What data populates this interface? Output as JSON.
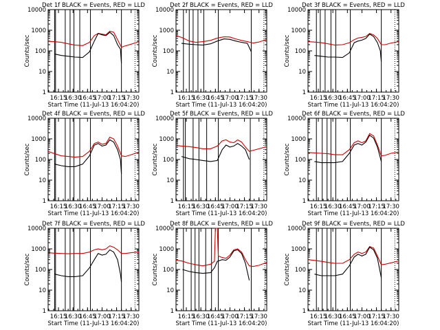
{
  "figure": {
    "y_axis_label": "Counts/sec",
    "x_axis_label": "Start Time (11-Jul-13 16:04:20)",
    "x_tick_labels": [
      "16:15",
      "16:30",
      "16:45",
      "17:00",
      "17:15",
      "17:30"
    ],
    "y_tick_labels": [
      "1",
      "10",
      "100",
      "1000",
      "10000"
    ]
  },
  "chart_data": [
    {
      "type": "line",
      "title": "Det 1f BLACK = Events, RED = LLD",
      "xlabel": "Start Time (11-Jul-13 16:04:20)",
      "ylabel": "Counts/sec",
      "y_scale": "log",
      "ylim": [
        1,
        10000
      ],
      "x_time_range": [
        "16:04:20",
        "17:38:00"
      ],
      "x_ticks": [
        "16:15",
        "16:30",
        "16:45",
        "17:00",
        "17:15",
        "17:30"
      ],
      "vertical_markers": [
        "16:11",
        "16:12",
        "16:22",
        "16:27",
        "16:31",
        "16:37",
        "16:48",
        "17:20"
      ],
      "dotted_marker": "17:34",
      "series": [
        {
          "name": "Events",
          "color": "#000000",
          "x": [
            "16:11",
            "16:18",
            "16:25",
            "16:32",
            "16:40",
            "16:47",
            "16:52",
            "16:56",
            "17:00",
            "17:04",
            "17:08",
            "17:12",
            "17:16",
            "17:19",
            "17:20"
          ],
          "y": [
            70,
            60,
            55,
            50,
            48,
            90,
            300,
            700,
            600,
            550,
            800,
            550,
            200,
            120,
            25
          ]
        },
        {
          "name": "LLD",
          "color": "#cc0000",
          "x": [
            "16:04",
            "16:10",
            "16:18",
            "16:25",
            "16:32",
            "16:40",
            "16:47",
            "16:52",
            "16:56",
            "17:00",
            "17:04",
            "17:08",
            "17:12",
            "17:16",
            "17:20",
            "17:23",
            "17:30",
            "17:38"
          ],
          "y": [
            290,
            280,
            260,
            220,
            190,
            180,
            260,
            550,
            700,
            650,
            600,
            900,
            800,
            350,
            150,
            170,
            210,
            280
          ]
        }
      ]
    },
    {
      "type": "line",
      "title": "Det 2f BLACK = Events, RED = LLD",
      "xlabel": "Start Time (11-Jul-13 16:04:20)",
      "ylabel": "Counts/sec",
      "y_scale": "log",
      "ylim": [
        1,
        10000
      ],
      "x_time_range": [
        "16:04:20",
        "17:38:00"
      ],
      "x_ticks": [
        "16:15",
        "16:30",
        "16:45",
        "17:00",
        "17:15",
        "17:30"
      ],
      "vertical_markers": [
        "16:12",
        "16:18",
        "16:22",
        "16:27",
        "16:33",
        "16:48",
        "17:22"
      ],
      "dotted_marker": "17:35",
      "series": [
        {
          "name": "Events",
          "color": "#000000",
          "x": [
            "16:10",
            "16:18",
            "16:25",
            "16:32",
            "16:40",
            "16:47",
            "16:54",
            "17:00",
            "17:06",
            "17:12",
            "17:18",
            "17:22"
          ],
          "y": [
            230,
            210,
            200,
            190,
            220,
            300,
            380,
            360,
            300,
            260,
            230,
            90
          ]
        },
        {
          "name": "LLD",
          "color": "#cc0000",
          "x": [
            "16:04",
            "16:10",
            "16:18",
            "16:25",
            "16:32",
            "16:40",
            "16:47",
            "16:54",
            "17:00",
            "17:06",
            "17:12",
            "17:18",
            "17:24",
            "17:30",
            "17:38"
          ],
          "y": [
            550,
            450,
            300,
            260,
            280,
            320,
            420,
            480,
            470,
            380,
            320,
            280,
            240,
            270,
            360
          ]
        }
      ]
    },
    {
      "type": "line",
      "title": "Det 3f BLACK = Events, RED = LLD",
      "xlabel": "Start Time (11-Jul-13 16:04:20)",
      "ylabel": "Counts/sec",
      "y_scale": "log",
      "ylim": [
        1,
        10000
      ],
      "x_time_range": [
        "16:04:20",
        "17:38:00"
      ],
      "x_ticks": [
        "16:15",
        "16:30",
        "16:45",
        "17:00",
        "17:15",
        "17:30"
      ],
      "vertical_markers": [
        "16:13",
        "16:17",
        "16:22",
        "16:28",
        "16:33",
        "16:48",
        "17:20"
      ],
      "dotted_marker": "17:34",
      "series": [
        {
          "name": "Events",
          "color": "#000000",
          "x": [
            "16:11",
            "16:18",
            "16:25",
            "16:32",
            "16:40",
            "16:47",
            "16:52",
            "16:56",
            "17:00",
            "17:04",
            "17:08",
            "17:12",
            "17:16",
            "17:19",
            "17:20"
          ],
          "y": [
            60,
            55,
            50,
            50,
            48,
            80,
            250,
            300,
            330,
            400,
            650,
            500,
            250,
            100,
            30
          ]
        },
        {
          "name": "LLD",
          "color": "#cc0000",
          "x": [
            "16:04",
            "16:10",
            "16:18",
            "16:25",
            "16:32",
            "16:40",
            "16:47",
            "16:52",
            "16:56",
            "17:00",
            "17:04",
            "17:08",
            "17:12",
            "17:16",
            "17:20",
            "17:24",
            "17:30",
            "17:38"
          ],
          "y": [
            280,
            270,
            250,
            220,
            190,
            200,
            250,
            350,
            420,
            450,
            500,
            700,
            600,
            400,
            200,
            200,
            240,
            280
          ]
        }
      ]
    },
    {
      "type": "line",
      "title": "Det 4f BLACK = Events, RED = LLD",
      "xlabel": "Start Time (11-Jul-13 16:04:20)",
      "ylabel": "Counts/sec",
      "y_scale": "log",
      "ylim": [
        1,
        10000
      ],
      "x_time_range": [
        "16:04:20",
        "17:38:00"
      ],
      "x_ticks": [
        "16:15",
        "16:30",
        "16:45",
        "17:00",
        "17:15",
        "17:30"
      ],
      "vertical_markers": [
        "16:11",
        "16:12",
        "16:22",
        "16:27",
        "16:31",
        "16:37",
        "16:48",
        "17:20"
      ],
      "dotted_marker": "17:34",
      "series": [
        {
          "name": "Events",
          "color": "#000000",
          "x": [
            "16:11",
            "16:18",
            "16:25",
            "16:32",
            "16:40",
            "16:47",
            "16:52",
            "16:56",
            "17:00",
            "17:04",
            "17:08",
            "17:12",
            "17:16",
            "17:19",
            "17:20"
          ],
          "y": [
            60,
            50,
            45,
            45,
            60,
            150,
            500,
            600,
            450,
            500,
            900,
            700,
            300,
            100,
            20
          ]
        },
        {
          "name": "LLD",
          "color": "#cc0000",
          "x": [
            "16:04",
            "16:10",
            "16:18",
            "16:25",
            "16:32",
            "16:40",
            "16:47",
            "16:52",
            "16:56",
            "17:00",
            "17:04",
            "17:08",
            "17:12",
            "17:16",
            "17:20",
            "17:24",
            "17:30",
            "17:38"
          ],
          "y": [
            250,
            200,
            150,
            140,
            130,
            140,
            250,
            600,
            700,
            550,
            600,
            1200,
            1000,
            450,
            150,
            140,
            170,
            230
          ]
        }
      ]
    },
    {
      "type": "line",
      "title": "Det 5f BLACK = Events, RED = LLD",
      "xlabel": "Start Time (11-Jul-13 16:04:20)",
      "ylabel": "Counts/sec",
      "y_scale": "log",
      "ylim": [
        1,
        10000
      ],
      "x_time_range": [
        "16:04:20",
        "17:38:00"
      ],
      "x_ticks": [
        "16:15",
        "16:30",
        "16:45",
        "17:00",
        "17:15",
        "17:30"
      ],
      "vertical_markers": [
        "16:12",
        "16:14",
        "16:22",
        "16:28",
        "16:36",
        "16:48",
        "17:21"
      ],
      "dotted_marker": "17:35",
      "series": [
        {
          "name": "Events",
          "color": "#000000",
          "x": [
            "16:10",
            "16:18",
            "16:25",
            "16:32",
            "16:40",
            "16:47",
            "16:52",
            "16:56",
            "17:00",
            "17:04",
            "17:08",
            "17:12",
            "17:16",
            "17:20"
          ],
          "y": [
            140,
            110,
            100,
            90,
            80,
            90,
            300,
            500,
            400,
            450,
            600,
            450,
            300,
            100
          ]
        },
        {
          "name": "LLD",
          "color": "#cc0000",
          "x": [
            "16:04",
            "16:10",
            "16:18",
            "16:25",
            "16:32",
            "16:40",
            "16:47",
            "16:52",
            "16:56",
            "17:00",
            "17:04",
            "17:08",
            "17:12",
            "17:16",
            "17:20",
            "17:24",
            "17:30",
            "17:38"
          ],
          "y": [
            480,
            450,
            420,
            380,
            330,
            330,
            450,
            800,
            900,
            700,
            650,
            900,
            700,
            400,
            250,
            280,
            330,
            420
          ]
        }
      ]
    },
    {
      "type": "line",
      "title": "Det 6f BLACK = Events, RED = LLD",
      "xlabel": "Start Time (11-Jul-13 16:04:20)",
      "ylabel": "Counts/sec",
      "y_scale": "log",
      "ylim": [
        1,
        10000
      ],
      "x_time_range": [
        "16:04:20",
        "17:38:00"
      ],
      "x_ticks": [
        "16:15",
        "16:30",
        "16:45",
        "17:00",
        "17:15",
        "17:30"
      ],
      "vertical_markers": [
        "16:13",
        "16:19",
        "16:24",
        "16:28",
        "16:33",
        "16:48",
        "17:20"
      ],
      "dotted_marker": "17:34",
      "series": [
        {
          "name": "Events",
          "color": "#000000",
          "x": [
            "16:11",
            "16:18",
            "16:25",
            "16:32",
            "16:40",
            "16:47",
            "16:52",
            "16:56",
            "17:00",
            "17:04",
            "17:08",
            "17:12",
            "17:16",
            "17:20"
          ],
          "y": [
            80,
            70,
            70,
            70,
            80,
            200,
            500,
            600,
            500,
            700,
            1500,
            1100,
            400,
            80
          ]
        },
        {
          "name": "LLD",
          "color": "#cc0000",
          "x": [
            "16:04",
            "16:10",
            "16:18",
            "16:25",
            "16:32",
            "16:40",
            "16:47",
            "16:52",
            "16:56",
            "17:00",
            "17:04",
            "17:08",
            "17:12",
            "17:16",
            "17:20",
            "17:24",
            "17:30",
            "17:38"
          ],
          "y": [
            220,
            210,
            200,
            190,
            170,
            170,
            300,
            650,
            800,
            650,
            800,
            1800,
            1400,
            500,
            150,
            160,
            200,
            230
          ]
        }
      ]
    },
    {
      "type": "line",
      "title": "Det 7f BLACK = Events, RED = LLD",
      "xlabel": "Start Time (11-Jul-13 16:04:20)",
      "ylabel": "Counts/sec",
      "y_scale": "log",
      "ylim": [
        1,
        10000
      ],
      "x_time_range": [
        "16:04:20",
        "17:38:00"
      ],
      "x_ticks": [
        "16:15",
        "16:30",
        "16:45",
        "17:00",
        "17:15",
        "17:30"
      ],
      "vertical_markers": [
        "16:11",
        "16:12",
        "16:22",
        "16:27",
        "16:31",
        "16:37",
        "16:48",
        "17:20"
      ],
      "dotted_marker": "17:34",
      "series": [
        {
          "name": "Events",
          "color": "#000000",
          "x": [
            "16:11",
            "16:18",
            "16:25",
            "16:32",
            "16:40",
            "16:47",
            "16:52",
            "16:56",
            "17:00",
            "17:04",
            "17:08",
            "17:12",
            "17:16",
            "17:19",
            "17:20"
          ],
          "y": [
            60,
            50,
            45,
            45,
            50,
            120,
            300,
            600,
            500,
            550,
            900,
            700,
            300,
            60,
            25
          ]
        },
        {
          "name": "LLD",
          "color": "#cc0000",
          "x": [
            "16:04",
            "16:10",
            "16:18",
            "16:25",
            "16:32",
            "16:40",
            "16:47",
            "16:52",
            "16:56",
            "17:00",
            "17:04",
            "17:08",
            "17:12",
            "17:16",
            "17:20",
            "17:24",
            "17:30",
            "17:38"
          ],
          "y": [
            650,
            620,
            600,
            580,
            600,
            600,
            700,
            900,
            1000,
            900,
            1000,
            1400,
            1200,
            900,
            600,
            600,
            650,
            700
          ]
        }
      ]
    },
    {
      "type": "line",
      "title": "Det 8f BLACK = Events, RED = LLD",
      "xlabel": "Start Time (11-Jul-13 16:04:20)",
      "ylabel": "Counts/sec",
      "y_scale": "log",
      "ylim": [
        1,
        10000
      ],
      "x_time_range": [
        "16:04:20",
        "17:38:00"
      ],
      "x_ticks": [
        "16:15",
        "16:30",
        "16:45",
        "17:00",
        "17:15",
        "17:30"
      ],
      "vertical_markers": [
        "16:12",
        "16:20",
        "16:24",
        "16:28",
        "16:35",
        "16:41",
        "16:48",
        "17:22"
      ],
      "dotted_marker": "17:36",
      "series": [
        {
          "name": "Events",
          "color": "#000000",
          "x": [
            "16:11",
            "16:18",
            "16:25",
            "16:32",
            "16:40",
            "16:44",
            "16:47",
            "16:52",
            "16:56",
            "17:00",
            "17:04",
            "17:08",
            "17:12",
            "17:16",
            "17:20"
          ],
          "y": [
            100,
            80,
            70,
            65,
            70,
            120,
            250,
            300,
            280,
            400,
            800,
            900,
            600,
            200,
            30
          ]
        },
        {
          "name": "LLD",
          "color": "#cc0000",
          "x": [
            "16:04",
            "16:10",
            "16:18",
            "16:25",
            "16:32",
            "16:40",
            "16:44",
            "16:45",
            "16:47",
            "16:48",
            "16:52",
            "16:56",
            "17:00",
            "17:04",
            "17:08",
            "17:12",
            "17:16",
            "17:20",
            "17:24",
            "17:30",
            "17:38"
          ],
          "y": [
            280,
            260,
            200,
            170,
            150,
            180,
            250,
            10000,
            10000,
            450,
            380,
            350,
            500,
            900,
            1000,
            700,
            300,
            150,
            140,
            160,
            220
          ]
        }
      ]
    },
    {
      "type": "line",
      "title": "Det 9f BLACK = Events, RED = LLD",
      "xlabel": "Start Time (11-Jul-13 16:04:20)",
      "ylabel": "Counts/sec",
      "y_scale": "log",
      "ylim": [
        1,
        10000
      ],
      "x_time_range": [
        "16:04:20",
        "17:38:00"
      ],
      "x_ticks": [
        "16:15",
        "16:30",
        "16:45",
        "17:00",
        "17:15",
        "17:30"
      ],
      "vertical_markers": [
        "16:13",
        "16:19",
        "16:24",
        "16:28",
        "16:33",
        "16:48",
        "17:20"
      ],
      "dotted_marker": "17:34",
      "series": [
        {
          "name": "Events",
          "color": "#000000",
          "x": [
            "16:11",
            "16:18",
            "16:25",
            "16:32",
            "16:40",
            "16:47",
            "16:52",
            "16:56",
            "17:00",
            "17:04",
            "17:08",
            "17:12",
            "17:16",
            "17:20"
          ],
          "y": [
            60,
            50,
            50,
            50,
            60,
            150,
            400,
            550,
            450,
            550,
            1200,
            900,
            350,
            40
          ]
        },
        {
          "name": "LLD",
          "color": "#cc0000",
          "x": [
            "16:04",
            "16:10",
            "16:18",
            "16:25",
            "16:32",
            "16:40",
            "16:47",
            "16:52",
            "16:56",
            "17:00",
            "17:04",
            "17:08",
            "17:12",
            "17:16",
            "17:20",
            "17:24",
            "17:30",
            "17:38"
          ],
          "y": [
            300,
            280,
            250,
            220,
            200,
            200,
            300,
            550,
            700,
            600,
            700,
            1300,
            1100,
            450,
            170,
            180,
            210,
            260
          ]
        }
      ]
    }
  ]
}
